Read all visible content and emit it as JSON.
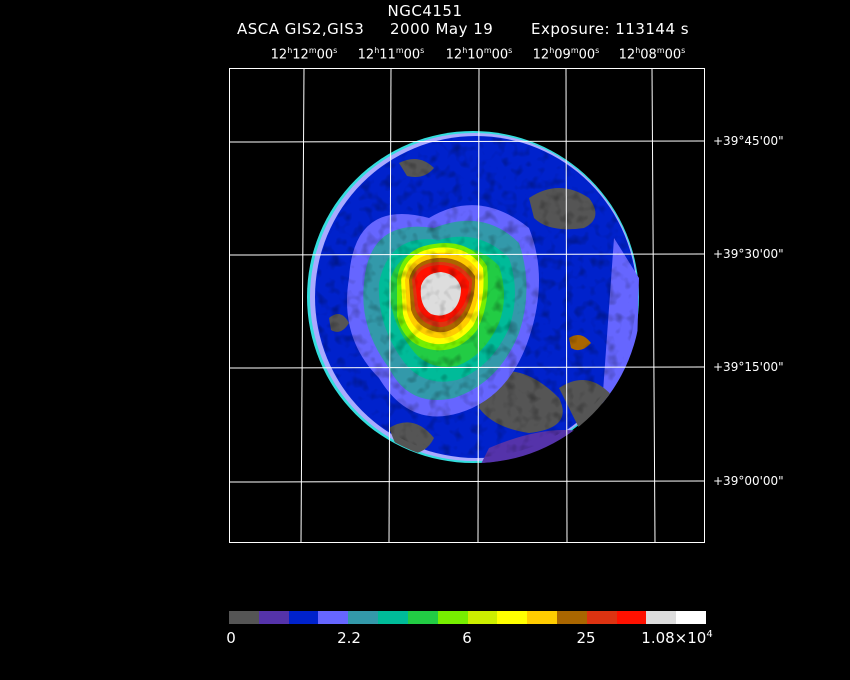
{
  "header": {
    "object": "NGC4151",
    "instrument": "ASCA GIS2,GIS3",
    "date": "2000 May 19",
    "exposure": "Exposure: 113144 s"
  },
  "axes": {
    "ra_labels": [
      {
        "h": "12",
        "m": "12",
        "s": "00"
      },
      {
        "h": "12",
        "m": "11",
        "s": "00"
      },
      {
        "h": "12",
        "m": "10",
        "s": "00"
      },
      {
        "h": "12",
        "m": "09",
        "s": "00"
      },
      {
        "h": "12",
        "m": "08",
        "s": "00"
      }
    ],
    "dec_labels": [
      "+39°45'00\"",
      "+39°30'00\"",
      "+39°15'00\"",
      "+39°00'00\""
    ]
  },
  "colorbar": {
    "colors": [
      "#555555",
      "#5533aa",
      "#0022cc",
      "#6666ff",
      "#3399aa",
      "#00bb99",
      "#22cc44",
      "#77ee00",
      "#ccee00",
      "#ffff00",
      "#ffcc00",
      "#aa6600",
      "#dd3311",
      "#ff1100",
      "#dddddd",
      "#ffffff"
    ],
    "ticks": [
      {
        "label": "0"
      },
      {
        "label": "2.2"
      },
      {
        "label": "6"
      },
      {
        "label": "25"
      },
      {
        "mant": "1.08×10",
        "exp": "4"
      }
    ]
  },
  "palette": {
    "background": "#000000",
    "grid": "#ffffff"
  }
}
